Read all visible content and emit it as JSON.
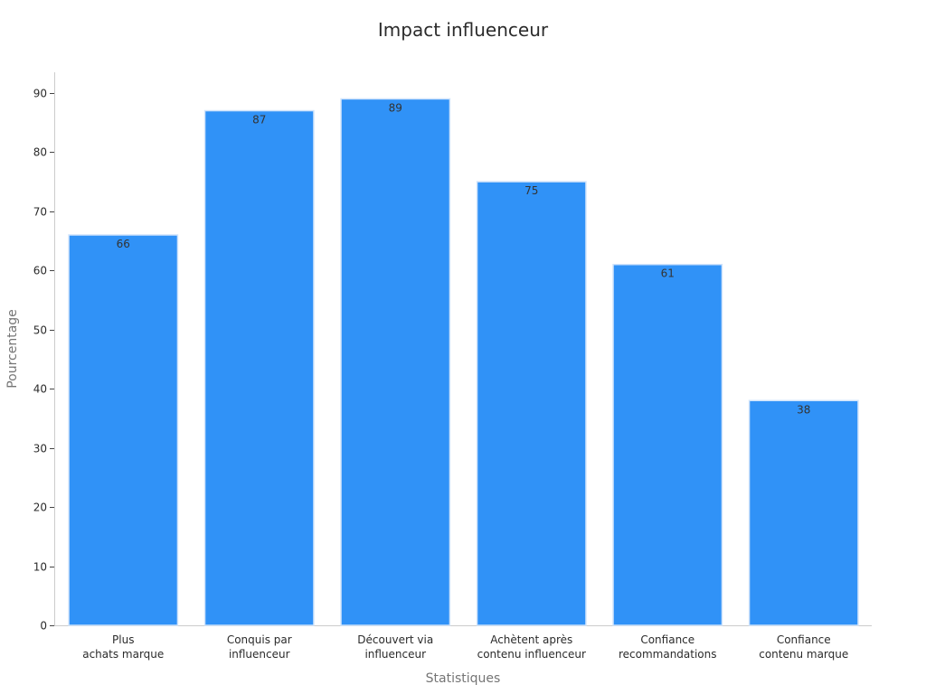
{
  "chart_data": {
    "type": "bar",
    "title": "Impact influenceur",
    "xlabel": "Statistiques",
    "ylabel": "Pourcentage",
    "categories": [
      [
        "Plus",
        "achats marque"
      ],
      [
        "Conquis par",
        "influenceur"
      ],
      [
        "Découvert via",
        "influenceur"
      ],
      [
        "Achètent après",
        "contenu influenceur"
      ],
      [
        "Confiance",
        "recommandations"
      ],
      [
        "Confiance",
        "contenu marque"
      ]
    ],
    "values": [
      66,
      87,
      89,
      75,
      61,
      38
    ],
    "ylim": [
      0,
      93.5
    ],
    "yticks": [
      0,
      10,
      20,
      30,
      40,
      50,
      60,
      70,
      80,
      90
    ],
    "grid": false,
    "legend": "none",
    "colors": {
      "bar": "#3092f7",
      "bar_edge": "#cfe3fb"
    }
  }
}
